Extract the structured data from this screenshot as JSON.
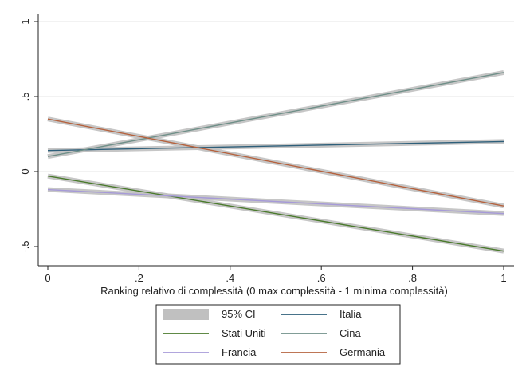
{
  "chart_data": {
    "type": "line",
    "xlabel": "Ranking relativo di complessità (0 max complessità - 1 minima complessità)",
    "ylabel": "",
    "xlim": [
      0,
      1
    ],
    "ylim": [
      -0.55,
      1.05
    ],
    "x_ticks": [
      0,
      0.2,
      0.4,
      0.6,
      0.8,
      1
    ],
    "x_tick_labels": [
      "0",
      ".2",
      ".4",
      ".6",
      ".8",
      "1"
    ],
    "y_ticks": [
      -0.5,
      0,
      0.5,
      1
    ],
    "y_tick_labels": [
      "-.5",
      "0",
      ".5",
      "1"
    ],
    "grid": "horizontal",
    "legend_position": "bottom",
    "ci_label": "95% CI",
    "ci_color": "#c0c0c0",
    "series": [
      {
        "name": "Stati Uniti",
        "color": "#4a7a2c",
        "x": [
          0,
          1
        ],
        "y": [
          -0.03,
          -0.53
        ]
      },
      {
        "name": "Francia",
        "color": "#a69ad8",
        "x": [
          0,
          1
        ],
        "y": [
          -0.12,
          -0.28
        ]
      },
      {
        "name": "Italia",
        "color": "#2e5f7a",
        "x": [
          0,
          1
        ],
        "y": [
          0.14,
          0.2
        ]
      },
      {
        "name": "Cina",
        "color": "#6f8f88",
        "x": [
          0,
          1
        ],
        "y": [
          0.1,
          0.66
        ]
      },
      {
        "name": "Germania",
        "color": "#b5623e",
        "x": [
          0,
          1
        ],
        "y": [
          0.35,
          -0.23
        ]
      }
    ],
    "legend_order": [
      "95% CI",
      "Italia",
      "Stati Uniti",
      "Cina",
      "Francia",
      "Germania"
    ]
  }
}
